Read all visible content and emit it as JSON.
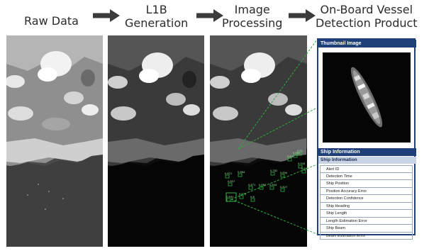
{
  "steps": [
    {
      "label_line1": "Raw Data",
      "label_line2": ""
    },
    {
      "label_line1": "L1B",
      "label_line2": "Generation"
    },
    {
      "label_line1": "Image",
      "label_line2": "Processing"
    },
    {
      "label_line1": "On-Board Vessel",
      "label_line2": "Detection Product"
    }
  ],
  "colors": {
    "arrow": "#3b3b3b",
    "card_header": "#1f3f78",
    "detection_box": "#35c94a",
    "connector": "#2fae3c"
  },
  "product_card": {
    "thumbnail_title": "Thumbnail Image",
    "ship_info_title": "Ship Information",
    "ship_info_subtitle": "Ship Information",
    "fields": [
      "Alert ID",
      "Detection Time",
      "Ship Position",
      "Position Accuracy Error",
      "Detection Confidence",
      "Ship Heading",
      "Ship Length",
      "Length Estimation Error",
      "Ship Beam",
      "Beam Estimation Error"
    ]
  },
  "detections": [
    "0.91",
    "0.893",
    "0.83",
    "0.821",
    "0.884",
    "0.782",
    "0.894",
    "0.916",
    "0.845",
    "0.807",
    "0.871",
    "0.864",
    "0.844",
    "0.827",
    "0.879",
    "0.8",
    "0.892"
  ]
}
